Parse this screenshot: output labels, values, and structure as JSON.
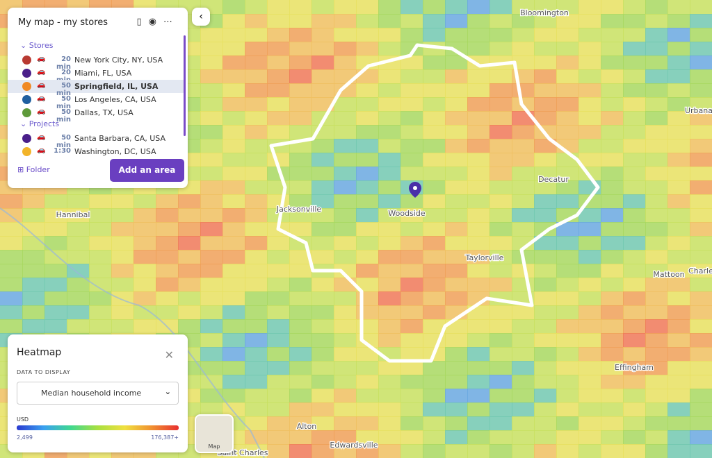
{
  "panel": {
    "title": "My map - my stores",
    "groups": [
      {
        "name": "Stores",
        "items": [
          {
            "color": "#b83a32",
            "time": "20 min",
            "place": "New York City, NY, USA"
          },
          {
            "color": "#4a1f8a",
            "time": "20 min",
            "place": "Miami, FL, USA"
          },
          {
            "color": "#f08a24",
            "time": "50 min",
            "place": "Springfield, IL, USA"
          },
          {
            "color": "#1f5fa0",
            "time": "50 min",
            "place": "Los Angeles, CA, USA"
          },
          {
            "color": "#5e9a3a",
            "time": "50 min",
            "place": "Dallas, TX, USA"
          }
        ]
      },
      {
        "name": "Projects",
        "items": [
          {
            "color": "#4a1f8a",
            "time": "50 min",
            "place": "Santa Barbara, CA, USA"
          },
          {
            "color": "#f2b42a",
            "time": "1:30",
            "place": "Washington, DC, USA"
          }
        ]
      }
    ],
    "folder": "Folder",
    "add_button": "Add an area"
  },
  "heatmap": {
    "title": "Heatmap",
    "data_label": "DATA TO DISPLAY",
    "select": "Median household income",
    "unit": "USD",
    "min_label": "2,499",
    "max_label": "176,387+"
  },
  "map_labels": [
    "Bloomington",
    "Urbana",
    "Decatur",
    "Jacksonville",
    "Woodside",
    "Taylorville",
    "Hannibal",
    "Mattoon",
    "Charle",
    "Effingham",
    "Alton",
    "Edwardsville",
    "Saint Charles"
  ],
  "map_toggle": "Map"
}
